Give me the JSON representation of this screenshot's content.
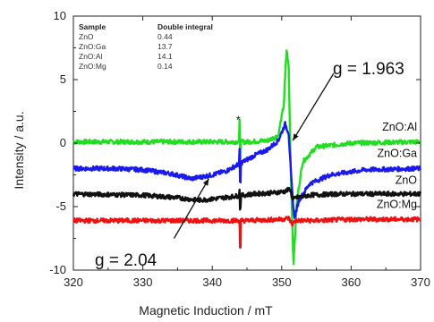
{
  "chart_data": {
    "type": "line",
    "xlabel": "Magnetic Induction / mT",
    "ylabel": "Intensity / a.u.",
    "xlim": [
      320,
      370
    ],
    "ylim": [
      -10,
      10
    ],
    "xticks": [
      "320",
      "330",
      "340",
      "350",
      "360",
      "370"
    ],
    "yticks": [
      "10",
      "5",
      "0",
      "-5",
      "-10"
    ],
    "grid": false,
    "table": {
      "headers": [
        "Sample",
        "Double integral"
      ],
      "rows": [
        [
          "ZnO",
          "0.44"
        ],
        [
          "ZnO:Ga",
          "13.7"
        ],
        [
          "ZnO:Al",
          "14.1"
        ],
        [
          "ZnO:Mg",
          "0.14"
        ]
      ]
    },
    "series": [
      {
        "name": "ZnO:Al",
        "color": "#22dd22",
        "offset": 0,
        "x": [
          320,
          335,
          345,
          348,
          349.5,
          350.3,
          350.7,
          351.0,
          351.3,
          351.7,
          352.2,
          353,
          355,
          360,
          370
        ],
        "y": [
          0.1,
          0.1,
          0.1,
          0.2,
          0.6,
          3.0,
          7.4,
          6.0,
          -2.0,
          -9.5,
          -4.5,
          -1.5,
          -0.3,
          0.0,
          0.1
        ]
      },
      {
        "name": "ZnO:Ga",
        "color": "#1a1aee",
        "offset": -2,
        "x": [
          320,
          326,
          330,
          334,
          337,
          340,
          342,
          344,
          346,
          348,
          349.5,
          350.5,
          351.0,
          351.4,
          351.8,
          352.5,
          354,
          357,
          362,
          370
        ],
        "y": [
          -2.0,
          -2.0,
          -2.1,
          -2.4,
          -2.8,
          -2.5,
          -2.2,
          -1.6,
          -1.0,
          -0.5,
          0.2,
          1.5,
          0.8,
          -3.0,
          -5.9,
          -4.5,
          -3.2,
          -2.5,
          -2.1,
          -2.0
        ]
      },
      {
        "name": "ZnO",
        "color": "#111111",
        "offset": -4,
        "x": [
          320,
          330,
          335,
          338,
          340,
          343,
          346,
          349,
          350.5,
          351.2,
          351.6,
          352,
          354,
          358,
          365,
          370
        ],
        "y": [
          -4.0,
          -4.1,
          -4.3,
          -4.5,
          -4.4,
          -4.2,
          -4.0,
          -3.9,
          -3.8,
          -3.6,
          -4.5,
          -4.3,
          -4.1,
          -4.0,
          -4.0,
          -4.0
        ]
      },
      {
        "name": "ZnO:Mg",
        "color": "#ee1111",
        "offset": -6,
        "x": [
          320,
          330,
          340,
          345,
          350,
          351,
          351.5,
          352,
          355,
          360,
          370
        ],
        "y": [
          -6.1,
          -6.1,
          -6.1,
          -6.1,
          -6.0,
          -5.9,
          -6.4,
          -6.1,
          -6.1,
          -6.0,
          -6.0
        ]
      }
    ],
    "feature": {
      "x": 344,
      "label": "*"
    },
    "annotations": [
      {
        "text": "g = 1.963",
        "x_from": 357.5,
        "y_from": 5.5,
        "x_to": 351.6,
        "y_to": 0.2
      },
      {
        "text": "g = 2.04",
        "x_from": 334.5,
        "y_from": -7.5,
        "x_to": 339.5,
        "y_to": -2.8
      }
    ]
  }
}
